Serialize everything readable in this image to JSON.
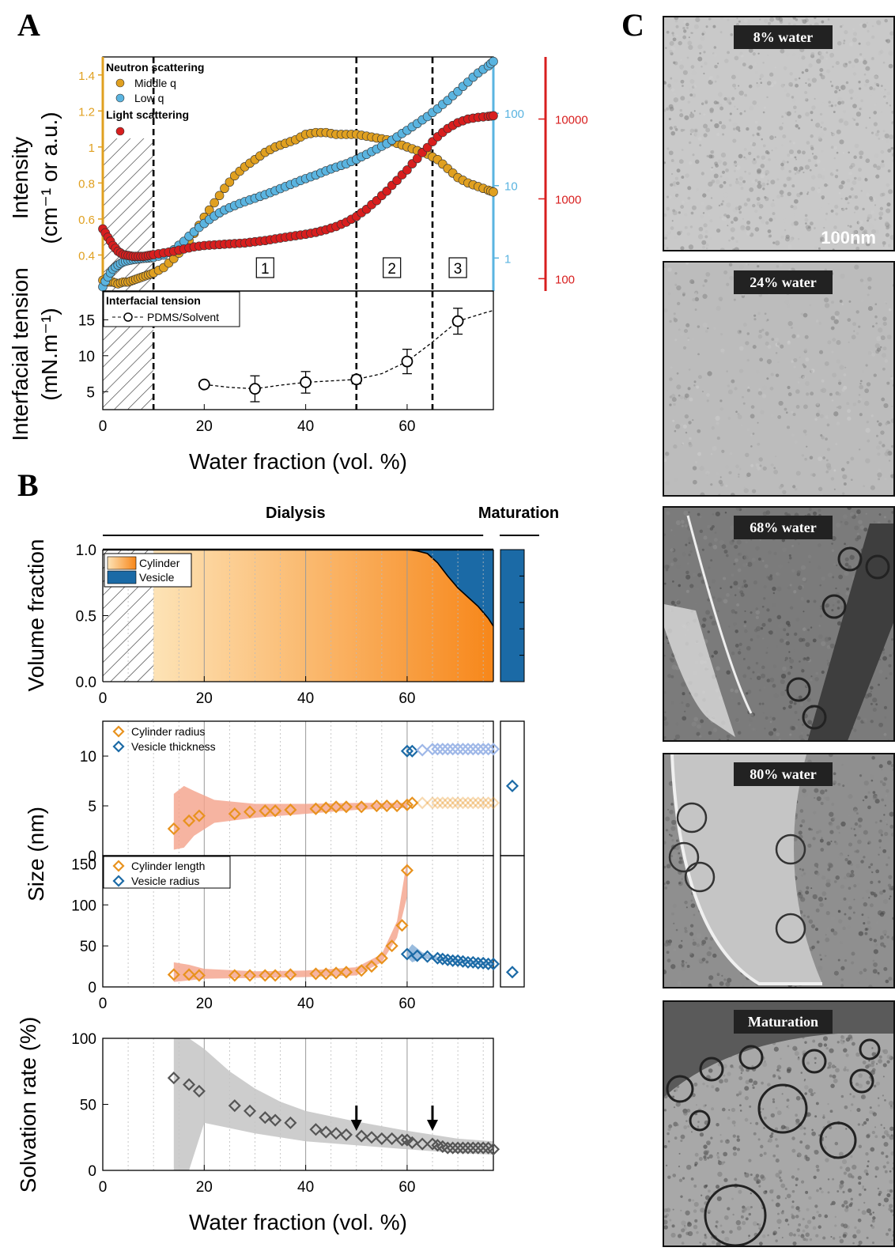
{
  "panels": {
    "a": "A",
    "b": "B",
    "c": "C"
  },
  "chart_data": [
    {
      "type": "scatter",
      "panel": "A-top",
      "ylabel": "Intensity\n(cm⁻¹ or a.u.)",
      "yticks_middle_q": [
        "1.4",
        "1.2",
        "1",
        "0.8",
        "0.6",
        "0.4"
      ],
      "yticks_low_q": [
        "100",
        "10",
        "1"
      ],
      "yticks_light": [
        "10000",
        "1000",
        "100"
      ],
      "ylim_middle_q": [
        0.2,
        1.5
      ],
      "ylim_low_q": [
        0.35,
        600
      ],
      "ylim_light": [
        70,
        60000
      ],
      "xlim": [
        0,
        77
      ],
      "log_scale": {
        "middle_q": false,
        "low_q": true,
        "light": true
      },
      "hatched_region": [
        0,
        10
      ],
      "dashed_lines": [
        10,
        50,
        65
      ],
      "regions": [
        "1",
        "2",
        "3"
      ],
      "legend_titles": {
        "neutron": "Neutron scattering",
        "light": "Light scattering"
      },
      "series": [
        {
          "name": "Middle q",
          "color": "#e0a020",
          "x": [
            0,
            1,
            2,
            3,
            4,
            5,
            6,
            7,
            8,
            9,
            10,
            12,
            14,
            16,
            18,
            20,
            22,
            24,
            26,
            28,
            30,
            32,
            34,
            36,
            38,
            40,
            42,
            44,
            46,
            48,
            50,
            52,
            54,
            56,
            58,
            60,
            62,
            64,
            66,
            68,
            70,
            72,
            74,
            76,
            77
          ],
          "values": [
            0.26,
            0.25,
            0.25,
            0.24,
            0.25,
            0.25,
            0.26,
            0.27,
            0.28,
            0.29,
            0.3,
            0.33,
            0.38,
            0.44,
            0.52,
            0.61,
            0.69,
            0.77,
            0.84,
            0.89,
            0.93,
            0.97,
            1.0,
            1.02,
            1.04,
            1.07,
            1.08,
            1.08,
            1.07,
            1.07,
            1.07,
            1.06,
            1.05,
            1.04,
            1.02,
            1.0,
            0.98,
            0.96,
            0.93,
            0.88,
            0.83,
            0.8,
            0.78,
            0.76,
            0.75
          ]
        },
        {
          "name": "Low q",
          "color": "#5ab4e0",
          "x": [
            0,
            1,
            2,
            3,
            4,
            5,
            6,
            7,
            8,
            9,
            10,
            12,
            14,
            16,
            18,
            20,
            22,
            24,
            26,
            28,
            30,
            32,
            34,
            36,
            38,
            40,
            42,
            44,
            46,
            48,
            50,
            52,
            54,
            56,
            58,
            60,
            62,
            64,
            66,
            68,
            70,
            72,
            74,
            76,
            77
          ],
          "values": [
            0.4,
            0.55,
            0.7,
            0.8,
            0.88,
            0.92,
            0.95,
            0.97,
            0.99,
            1.0,
            1.02,
            1.1,
            1.3,
            1.7,
            2.3,
            3.0,
            3.8,
            4.6,
            5.3,
            6.0,
            6.7,
            7.5,
            8.5,
            9.7,
            11,
            12.5,
            14,
            16,
            18,
            20,
            23,
            27,
            32,
            38,
            47,
            58,
            72,
            90,
            115,
            150,
            200,
            270,
            360,
            450,
            520
          ]
        },
        {
          "name": "Light scattering",
          "color": "#d81e1e",
          "x": [
            0,
            1,
            2,
            3,
            4,
            5,
            6,
            7,
            8,
            9,
            10,
            12,
            14,
            16,
            18,
            20,
            22,
            24,
            26,
            28,
            30,
            32,
            34,
            36,
            38,
            40,
            42,
            44,
            46,
            48,
            50,
            52,
            54,
            56,
            58,
            60,
            62,
            64,
            66,
            68,
            70,
            72,
            74,
            76,
            77
          ],
          "values": [
            420,
            330,
            260,
            220,
            200,
            195,
            190,
            190,
            190,
            195,
            200,
            210,
            220,
            235,
            250,
            260,
            265,
            270,
            275,
            280,
            290,
            300,
            315,
            330,
            345,
            360,
            380,
            410,
            450,
            510,
            600,
            740,
            950,
            1250,
            1700,
            2300,
            3200,
            4400,
            6000,
            7600,
            9000,
            10000,
            10500,
            10800,
            11000
          ]
        }
      ]
    },
    {
      "type": "line",
      "panel": "A-bottom",
      "title": "Interfacial tension",
      "ylabel": "Interfacial tension\n(mN.m⁻¹)",
      "xlabel": "Water fraction (vol. %)",
      "xlim": [
        0,
        77
      ],
      "ylim": [
        2.5,
        19
      ],
      "yticks": [
        "15",
        "10",
        "5"
      ],
      "xticks": [
        "0",
        "20",
        "40",
        "60"
      ],
      "series": [
        {
          "name": "PDMS/Solvent",
          "x": [
            20,
            30,
            40,
            50,
            60,
            70
          ],
          "values": [
            6.0,
            5.4,
            6.3,
            6.7,
            9.2,
            14.8
          ],
          "err": [
            0.3,
            1.8,
            1.5,
            0.6,
            1.7,
            1.8
          ]
        }
      ],
      "fit_line": {
        "x": [
          20,
          25,
          30,
          35,
          40,
          45,
          50,
          55,
          60,
          65,
          70,
          75,
          77
        ],
        "values": [
          6.0,
          5.6,
          5.4,
          5.9,
          6.3,
          6.5,
          6.7,
          7.5,
          9.2,
          11.9,
          14.8,
          15.9,
          16.3
        ]
      }
    },
    {
      "type": "area",
      "panel": "B-volume",
      "ylabel": "Volume fraction",
      "section_labels": {
        "dialysis": "Dialysis",
        "maturation": "Maturation"
      },
      "xlim": [
        0,
        77
      ],
      "ylim": [
        0,
        1
      ],
      "yticks": [
        "1.0",
        "0.5",
        "0.0"
      ],
      "xticks": [
        "0",
        "20",
        "40",
        "60"
      ],
      "series": [
        {
          "name": "Cylinder",
          "x": [
            10,
            60,
            62,
            64,
            66,
            68,
            70,
            72,
            74,
            76,
            77
          ],
          "values": [
            1,
            1,
            0.99,
            0.97,
            0.9,
            0.8,
            0.71,
            0.64,
            0.57,
            0.48,
            0.42
          ]
        },
        {
          "name": "Vesicle",
          "x": [
            10,
            60,
            62,
            64,
            66,
            68,
            70,
            72,
            74,
            76,
            77
          ],
          "values": [
            0,
            0,
            0.01,
            0.03,
            0.1,
            0.2,
            0.29,
            0.36,
            0.43,
            0.52,
            0.58
          ]
        }
      ],
      "maturation": {
        "vesicle": 1.0
      }
    },
    {
      "type": "scatter",
      "panel": "B-size-top",
      "ylabel": "Size (nm)",
      "xlim": [
        0,
        77
      ],
      "ylim": [
        0,
        13.5
      ],
      "yticks": [
        "10",
        "5",
        "0"
      ],
      "series": [
        {
          "name": "Cylinder radius",
          "x": [
            14,
            17,
            19,
            26,
            29,
            32,
            34,
            37,
            42,
            44,
            46,
            48,
            51,
            54,
            56,
            58,
            60,
            61,
            63,
            65,
            66,
            67,
            68,
            69,
            70,
            71,
            72,
            73,
            74,
            75,
            76,
            77
          ],
          "values": [
            2.7,
            3.5,
            4.0,
            4.2,
            4.4,
            4.5,
            4.5,
            4.6,
            4.7,
            4.8,
            4.9,
            4.9,
            4.9,
            5.0,
            5.0,
            5.0,
            5.1,
            5.3,
            5.3,
            5.3,
            5.3,
            5.3,
            5.3,
            5.3,
            5.3,
            5.3,
            5.3,
            5.3,
            5.3,
            5.3,
            5.3,
            5.3
          ]
        },
        {
          "name": "Vesicle thickness",
          "x": [
            60,
            61,
            63,
            65,
            66,
            67,
            68,
            69,
            70,
            71,
            72,
            73,
            74,
            75,
            76,
            77
          ],
          "values": [
            10.5,
            10.5,
            10.6,
            10.7,
            10.7,
            10.7,
            10.7,
            10.7,
            10.7,
            10.7,
            10.7,
            10.7,
            10.7,
            10.7,
            10.7,
            10.7
          ]
        }
      ],
      "maturation": {
        "vesicle_thickness": 7.0
      }
    },
    {
      "type": "scatter",
      "panel": "B-size-bottom",
      "xlabel": "",
      "xlim": [
        0,
        77
      ],
      "ylim": [
        0,
        160
      ],
      "yticks": [
        "150",
        "100",
        "50",
        "0"
      ],
      "xticks": [
        "0",
        "20",
        "40",
        "60"
      ],
      "series": [
        {
          "name": "Cylinder length",
          "x": [
            14,
            17,
            19,
            26,
            29,
            32,
            34,
            37,
            42,
            44,
            46,
            48,
            51,
            53,
            55,
            57,
            59,
            60
          ],
          "values": [
            15,
            15,
            14,
            14,
            14,
            14,
            14,
            15,
            16,
            16,
            17,
            18,
            20,
            25,
            35,
            50,
            75,
            142
          ]
        },
        {
          "name": "Vesicle radius",
          "x": [
            60,
            62,
            64,
            66,
            67,
            68,
            69,
            70,
            71,
            72,
            73,
            74,
            75,
            76,
            77
          ],
          "values": [
            40,
            38,
            37,
            35,
            34,
            33,
            32,
            32,
            31,
            30,
            30,
            29,
            29,
            28,
            28
          ]
        }
      ],
      "maturation": {
        "vesicle_radius": 18
      }
    },
    {
      "type": "scatter",
      "panel": "B-solvation",
      "ylabel": "Solvation rate (%)",
      "xlabel": "Water fraction (vol. %)",
      "xlim": [
        0,
        77
      ],
      "ylim": [
        0,
        100
      ],
      "yticks": [
        "100",
        "50",
        "0"
      ],
      "xticks": [
        "0",
        "20",
        "40",
        "60"
      ],
      "arrows_at": [
        50,
        65
      ],
      "series": [
        {
          "name": "Solvation rate",
          "x": [
            14,
            17,
            19,
            26,
            29,
            32,
            34,
            37,
            42,
            44,
            46,
            48,
            51,
            53,
            55,
            57,
            59,
            60,
            61,
            63,
            65,
            66,
            67,
            68,
            69,
            70,
            71,
            72,
            73,
            74,
            75,
            76,
            77
          ],
          "values": [
            70,
            65,
            60,
            49,
            45,
            40,
            38,
            36,
            31,
            29,
            28,
            27,
            26,
            25,
            24,
            24,
            23,
            23,
            21,
            20,
            20,
            19,
            18,
            17,
            17,
            17,
            17,
            17,
            17,
            17,
            17,
            17,
            16
          ]
        }
      ]
    }
  ],
  "micrographs": [
    {
      "label": "8% water",
      "scale": "100nm",
      "style": "speckle"
    },
    {
      "label": "24% water",
      "style": "speckle-light"
    },
    {
      "label": "68% water",
      "style": "tube"
    },
    {
      "label": "80% water",
      "style": "loop"
    },
    {
      "label": "Maturation",
      "style": "vesicles"
    }
  ],
  "colors": {
    "orange": "#e8921e",
    "blue": "#1b6aa6",
    "lightblue": "#5ab4e0",
    "red": "#d81e1e",
    "yellow": "#e0a020",
    "gray": "#555555"
  }
}
